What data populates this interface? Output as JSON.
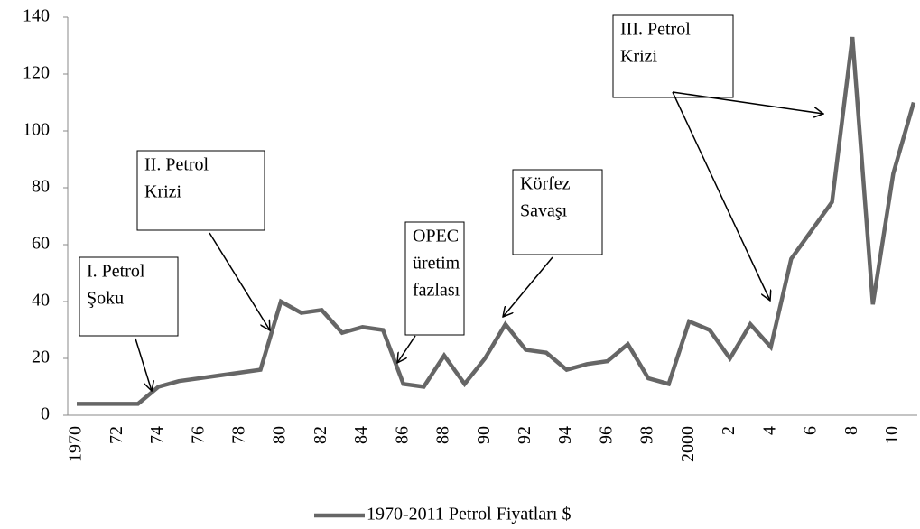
{
  "chart_data": {
    "type": "line",
    "categories": [
      "1970",
      null,
      "72",
      null,
      "74",
      null,
      "76",
      null,
      "78",
      null,
      "80",
      null,
      "82",
      null,
      "84",
      null,
      "86",
      null,
      "88",
      null,
      "90",
      null,
      "92",
      null,
      "94",
      null,
      "96",
      null,
      "98",
      null,
      "2000",
      null,
      "2",
      null,
      "4",
      null,
      "6",
      null,
      "8",
      null,
      "10",
      null
    ],
    "series": [
      {
        "name": "1970-2011 Petrol Fiyatları $",
        "color": "#666666",
        "values": [
          4,
          4,
          4,
          4,
          10,
          12,
          13,
          14,
          15,
          16,
          40,
          36,
          37,
          29,
          31,
          30,
          11,
          10,
          21,
          11,
          20,
          32,
          23,
          22,
          16,
          18,
          19,
          25,
          13,
          11,
          33,
          30,
          20,
          32,
          24,
          55,
          65,
          75,
          133,
          39,
          85,
          110
        ]
      }
    ],
    "ylim": [
      0,
      140
    ],
    "yticks": [
      0,
      20,
      40,
      60,
      80,
      100,
      120,
      140
    ],
    "annotations": [
      [
        "I. Petrol",
        "Şoku"
      ],
      [
        "II. Petrol",
        "Krizi"
      ],
      [
        "OPEC",
        "üretim",
        "fazlası"
      ],
      [
        "Körfez",
        "Savaşı"
      ],
      [
        "III. Petrol",
        "Krizi"
      ]
    ],
    "legend": "bottom"
  }
}
